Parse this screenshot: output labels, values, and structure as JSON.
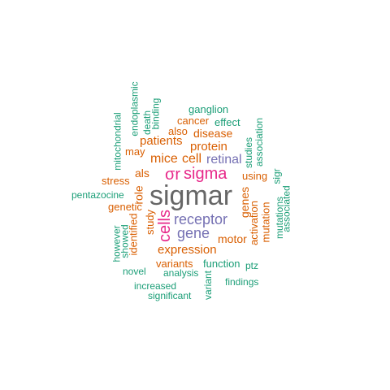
{
  "colors": {
    "teal": "#1b9e77",
    "orange": "#d95f02",
    "purple": "#7570b3",
    "magenta": "#e7298a",
    "gray": "#666666"
  },
  "words": [
    {
      "id": "sigmar",
      "text": "sigmar"
    },
    {
      "id": "sigma-symbol",
      "text": "σr"
    },
    {
      "id": "sigma",
      "text": "sigma"
    },
    {
      "id": "cells",
      "text": "cells"
    },
    {
      "id": "receptor",
      "text": "receptor"
    },
    {
      "id": "gene",
      "text": "gene"
    },
    {
      "id": "retinal",
      "text": "retinal"
    },
    {
      "id": "cell",
      "text": "cell"
    },
    {
      "id": "mice",
      "text": "mice"
    },
    {
      "id": "protein",
      "text": "protein"
    },
    {
      "id": "patients",
      "text": "patients"
    },
    {
      "id": "disease",
      "text": "disease"
    },
    {
      "id": "also",
      "text": "also"
    },
    {
      "id": "cancer",
      "text": "cancer"
    },
    {
      "id": "effect",
      "text": "effect"
    },
    {
      "id": "ganglion",
      "text": "ganglion"
    },
    {
      "id": "expression",
      "text": "expression"
    },
    {
      "id": "variants",
      "text": "variants"
    },
    {
      "id": "function",
      "text": "function"
    },
    {
      "id": "motor",
      "text": "motor"
    },
    {
      "id": "genes",
      "text": "genes"
    },
    {
      "id": "als",
      "text": "als"
    },
    {
      "id": "role",
      "text": "role"
    },
    {
      "id": "study",
      "text": "study"
    },
    {
      "id": "identified",
      "text": "identified"
    },
    {
      "id": "stress",
      "text": "stress"
    },
    {
      "id": "genetic",
      "text": "genetic"
    },
    {
      "id": "using",
      "text": "using"
    },
    {
      "id": "may",
      "text": "may"
    },
    {
      "id": "activation",
      "text": "activation"
    },
    {
      "id": "mutation",
      "text": "mutation"
    },
    {
      "id": "analysis",
      "text": "analysis"
    },
    {
      "id": "pentazocine",
      "text": "pentazocine"
    },
    {
      "id": "mitochondrial",
      "text": "mitochondrial"
    },
    {
      "id": "endoplasmic",
      "text": "endoplasmic"
    },
    {
      "id": "death",
      "text": "death"
    },
    {
      "id": "binding",
      "text": "binding"
    },
    {
      "id": "studies",
      "text": "studies"
    },
    {
      "id": "association",
      "text": "association"
    },
    {
      "id": "sigr",
      "text": "sigr"
    },
    {
      "id": "mutations",
      "text": "mutations"
    },
    {
      "id": "associated",
      "text": "associated"
    },
    {
      "id": "however",
      "text": "however"
    },
    {
      "id": "showed",
      "text": "showed"
    },
    {
      "id": "novel",
      "text": "novel"
    },
    {
      "id": "increased",
      "text": "increased"
    },
    {
      "id": "significant",
      "text": "significant"
    },
    {
      "id": "variant",
      "text": "variant"
    },
    {
      "id": "findings",
      "text": "findings"
    },
    {
      "id": "ptz",
      "text": "ptz"
    }
  ]
}
